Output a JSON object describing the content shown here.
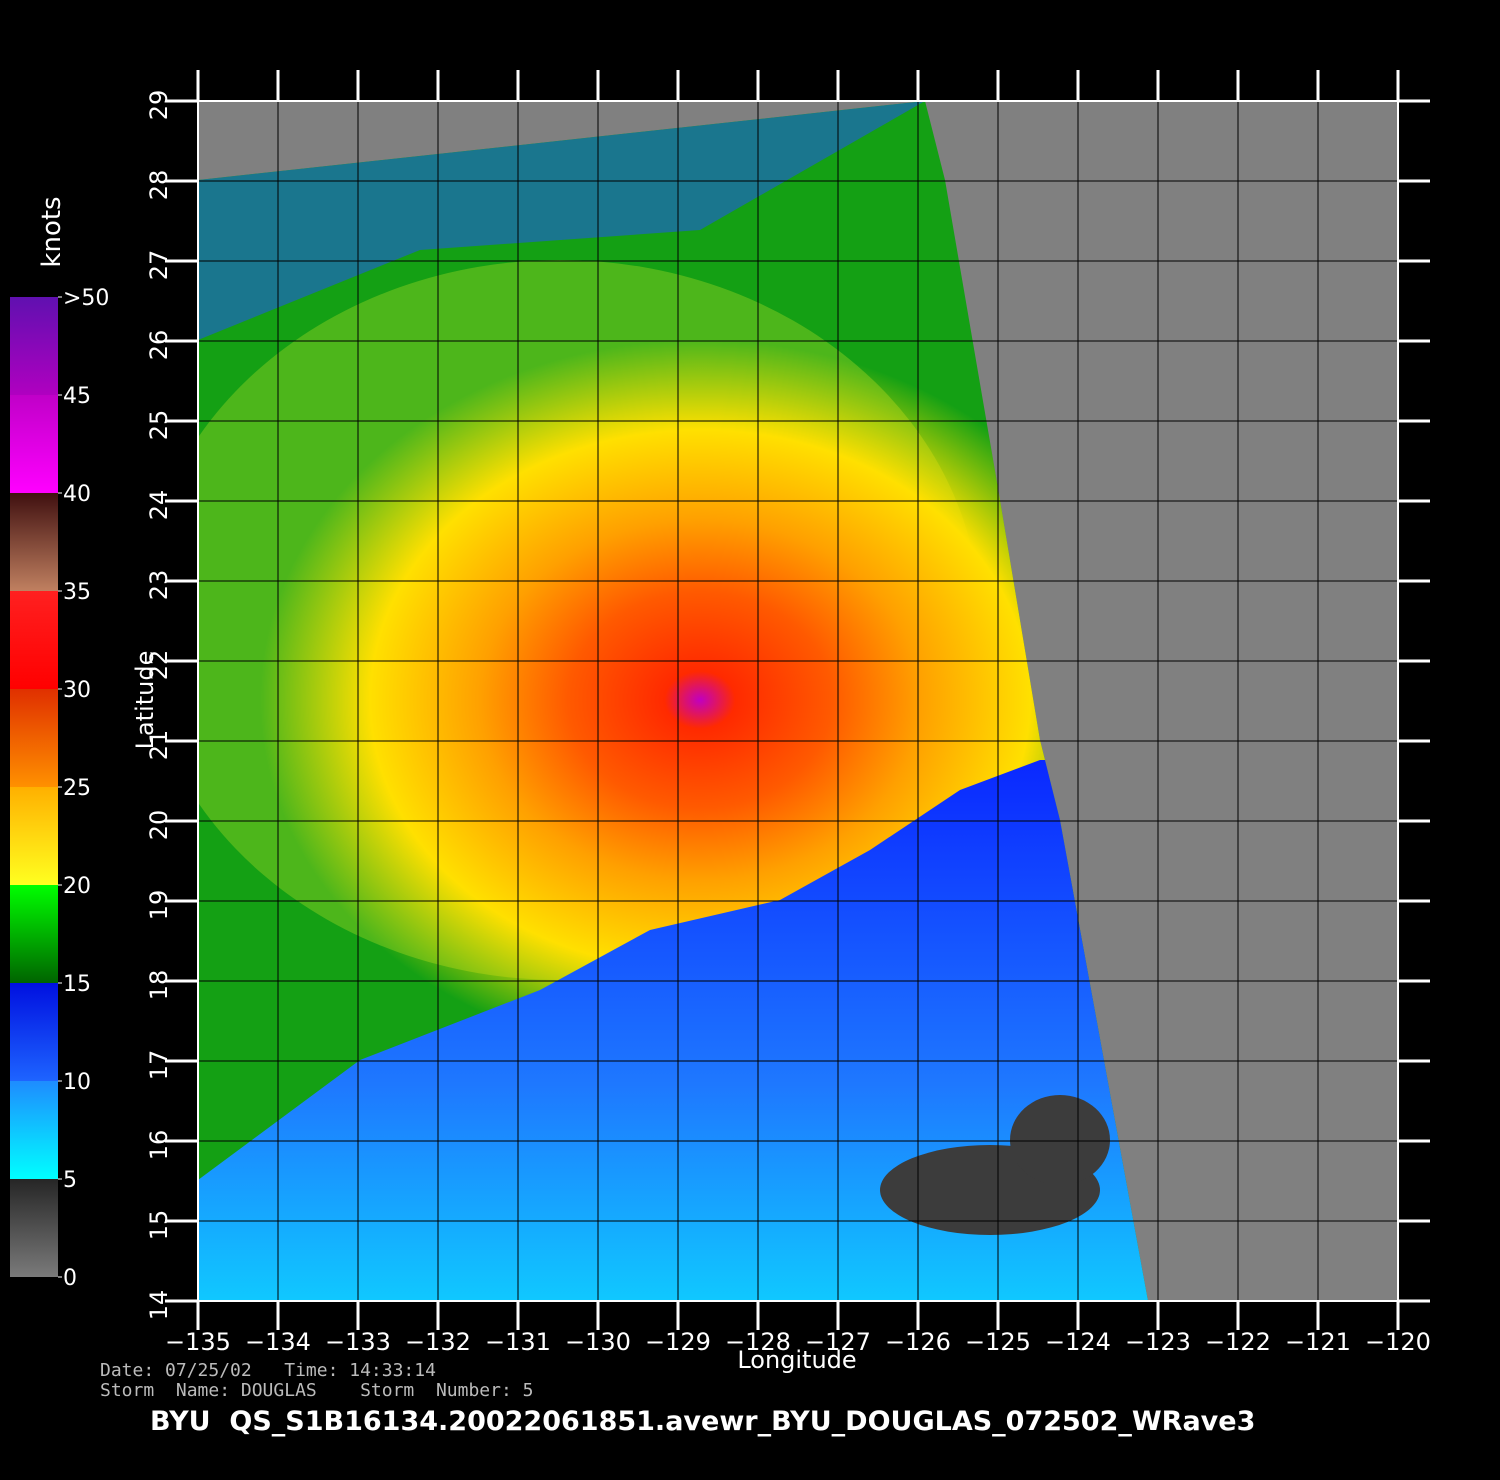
{
  "map": {
    "title": "BYU  QS_S1B16134.20022061851.avewr_BYU_DOUGLAS_072502_WRave3",
    "info": [
      "Date: 07/25/02   Time: 14:33:14",
      "Storm  Name: DOUGLAS    Storm  Number: 5"
    ],
    "xlabel": "Longitude",
    "ylabel": "Latitude",
    "xlim": [
      -135,
      -120
    ],
    "ylim": [
      14,
      29
    ],
    "grid": true,
    "xticks": [
      {
        "value": -135,
        "label": "−135"
      },
      {
        "value": -134,
        "label": "−134"
      },
      {
        "value": -133,
        "label": "−133"
      },
      {
        "value": -132,
        "label": "−132"
      },
      {
        "value": -131,
        "label": "−131"
      },
      {
        "value": -130,
        "label": "−130"
      },
      {
        "value": -129,
        "label": "−129"
      },
      {
        "value": -128,
        "label": "−128"
      },
      {
        "value": -127,
        "label": "−127"
      },
      {
        "value": -126,
        "label": "−126"
      },
      {
        "value": -125,
        "label": "−125"
      },
      {
        "value": -124,
        "label": "−124"
      },
      {
        "value": -123,
        "label": "−123"
      },
      {
        "value": -122,
        "label": "−122"
      },
      {
        "value": -121,
        "label": "−121"
      },
      {
        "value": -120,
        "label": "−120"
      }
    ],
    "yticks": [
      14,
      15,
      16,
      17,
      18,
      19,
      20,
      21,
      22,
      23,
      24,
      25,
      26,
      27,
      28,
      29
    ],
    "colorbar": {
      "title": "knots",
      "lim": [
        0,
        50
      ],
      "ticks": [
        0,
        5,
        10,
        15,
        20,
        25,
        30,
        35,
        40,
        {
          "value": 45,
          "label": "45"
        },
        {
          "value": 50,
          "label": ">50"
        }
      ],
      "colors": [
        [
          "#7a7a7a",
          "#262626"
        ],
        [
          "#00ffff",
          "#1e8cff"
        ],
        [
          "#1e64ff",
          "#0010e0"
        ],
        [
          "#006400",
          "#00ff00"
        ],
        [
          "#ffff20",
          "#ffb000"
        ],
        [
          "#ff9000",
          "#e03000"
        ],
        [
          "#ff0000",
          "#ff2020"
        ],
        [
          "#c08060",
          "#401010"
        ],
        [
          "#ff00ff",
          "#c000c8"
        ],
        [
          "#b000c0",
          "#6010b0"
        ]
      ]
    }
  }
}
